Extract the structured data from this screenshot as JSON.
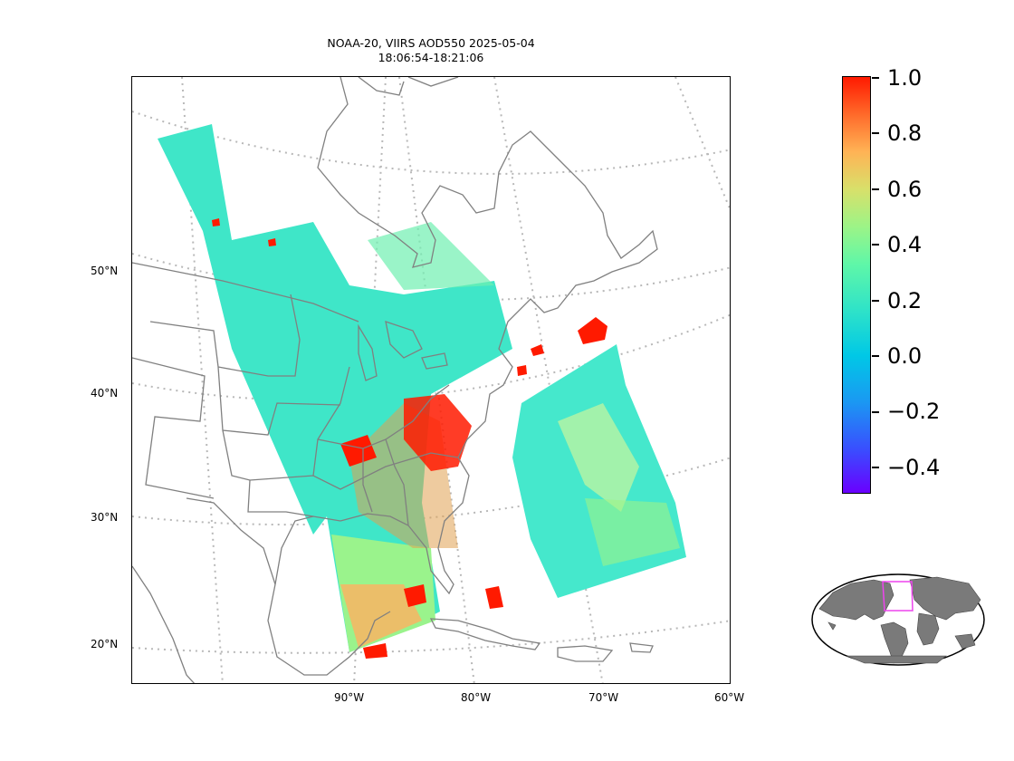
{
  "title": {
    "line1": "NOAA-20, VIIRS AOD550 2025-05-04",
    "line2": "18:06:54-18:21:06"
  },
  "map": {
    "latitude_labels": [
      "50°N",
      "40°N",
      "30°N",
      "20°N"
    ],
    "longitude_labels": [
      "90°W",
      "80°W",
      "70°W",
      "60°W"
    ],
    "gridlines": "dotted",
    "coastline_color": "#808080"
  },
  "colorbar": {
    "labels": [
      "1.0",
      "0.8",
      "0.6",
      "0.4",
      "0.2",
      "0.0",
      "−0.2",
      "−0.4"
    ],
    "range": [
      -0.5,
      1.0
    ],
    "colormap": "rainbow",
    "min_color": "#6a00ff",
    "max_color": "#ff1a00"
  },
  "inset": {
    "description_icon": "world-globe-icon",
    "highlight_color": "#ee44ee"
  }
}
